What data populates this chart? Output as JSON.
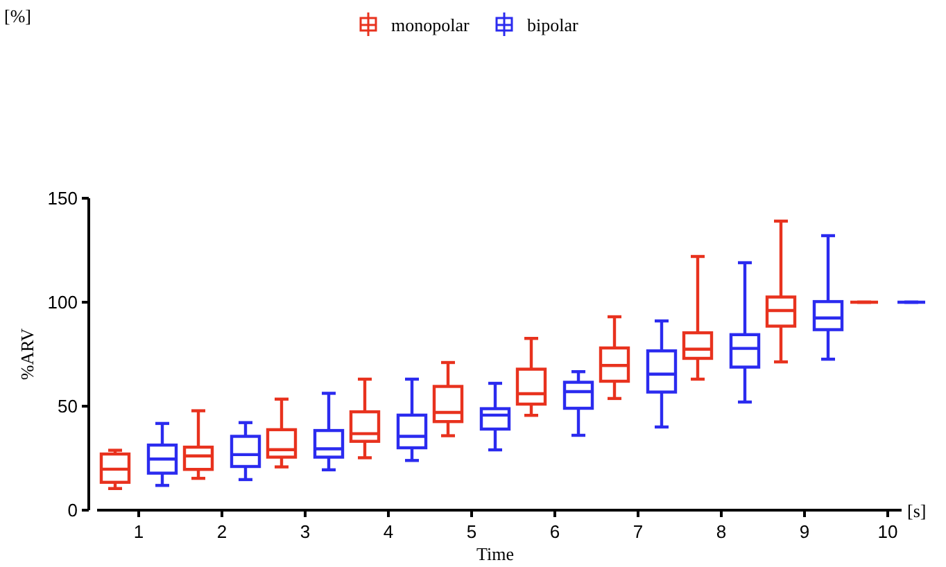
{
  "chart_data": {
    "type": "box",
    "xlabel": "Time",
    "ylabel": "%ARV",
    "annotations": [
      "[%]",
      "[s]"
    ],
    "categories": [
      "1",
      "2",
      "3",
      "4",
      "5",
      "6",
      "7",
      "8",
      "9",
      "10"
    ],
    "ylim": [
      0,
      150
    ],
    "yticks": [
      0,
      50,
      100,
      150
    ],
    "legend": "top",
    "grid": false,
    "series": [
      {
        "name": "monopolar",
        "color": "#e8321e",
        "boxes": [
          {
            "low": 10.4,
            "q1": 13.4,
            "median": 19.7,
            "q3": 27,
            "high": 28.8
          },
          {
            "low": 15.3,
            "q1": 19.6,
            "median": 26.1,
            "q3": 30.3,
            "high": 47.8
          },
          {
            "low": 20.8,
            "q1": 25.5,
            "median": 29.1,
            "q3": 38.7,
            "high": 53.4
          },
          {
            "low": 25.2,
            "q1": 33.1,
            "median": 36.8,
            "q3": 47.3,
            "high": 63
          },
          {
            "low": 35.8,
            "q1": 42.6,
            "median": 47,
            "q3": 59.5,
            "high": 71
          },
          {
            "low": 45.6,
            "q1": 51,
            "median": 56,
            "q3": 67.8,
            "high": 82.6
          },
          {
            "low": 53.7,
            "q1": 62,
            "median": 69.6,
            "q3": 78,
            "high": 93
          },
          {
            "low": 63,
            "q1": 73,
            "median": 77.4,
            "q3": 85.3,
            "high": 122
          },
          {
            "low": 71.3,
            "q1": 88.5,
            "median": 96,
            "q3": 102.5,
            "high": 139
          },
          {
            "low": 100,
            "q1": 100,
            "median": 100,
            "q3": 100,
            "high": 100
          }
        ]
      },
      {
        "name": "bipolar",
        "color": "#2b2bef",
        "boxes": [
          {
            "low": 11.9,
            "q1": 17.8,
            "median": 24.6,
            "q3": 31.3,
            "high": 41.7
          },
          {
            "low": 14.7,
            "q1": 21,
            "median": 26.7,
            "q3": 35.5,
            "high": 42.1
          },
          {
            "low": 19.4,
            "q1": 25.5,
            "median": 29.5,
            "q3": 38.3,
            "high": 56.2
          },
          {
            "low": 23.9,
            "q1": 30,
            "median": 35.5,
            "q3": 45.7,
            "high": 63
          },
          {
            "low": 29,
            "q1": 39,
            "median": 45.7,
            "q3": 48.8,
            "high": 61
          },
          {
            "low": 36,
            "q1": 49,
            "median": 57,
            "q3": 61.5,
            "high": 66.6
          },
          {
            "low": 40,
            "q1": 56.8,
            "median": 65.4,
            "q3": 76.6,
            "high": 91
          },
          {
            "low": 52,
            "q1": 68.8,
            "median": 77.8,
            "q3": 84.4,
            "high": 119
          },
          {
            "low": 72.6,
            "q1": 86.8,
            "median": 92.4,
            "q3": 100.3,
            "high": 132
          },
          {
            "low": 100,
            "q1": 100,
            "median": 100,
            "q3": 100,
            "high": 100
          }
        ]
      }
    ]
  }
}
